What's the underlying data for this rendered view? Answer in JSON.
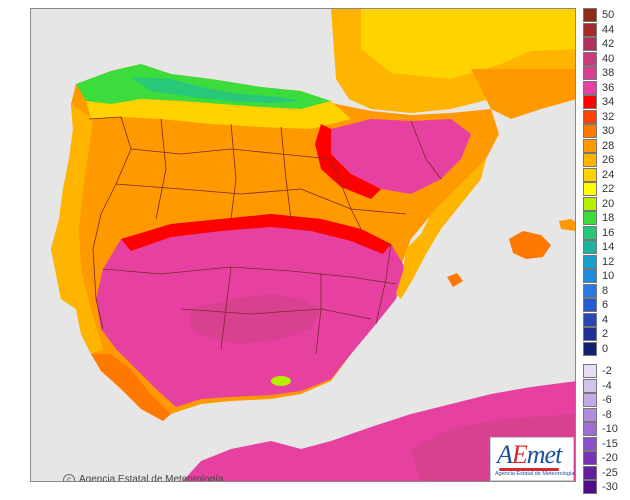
{
  "legend": {
    "items": [
      {
        "label": "50",
        "color": "#8c2a14"
      },
      {
        "label": "44",
        "color": "#a52a2a"
      },
      {
        "label": "42",
        "color": "#b03060"
      },
      {
        "label": "40",
        "color": "#c83c7c"
      },
      {
        "label": "38",
        "color": "#d84090"
      },
      {
        "label": "36",
        "color": "#e640a0"
      },
      {
        "label": "34",
        "color": "#ff0000"
      },
      {
        "label": "32",
        "color": "#ff4000"
      },
      {
        "label": "30",
        "color": "#ff7800"
      },
      {
        "label": "28",
        "color": "#ff9900"
      },
      {
        "label": "26",
        "color": "#ffb400"
      },
      {
        "label": "24",
        "color": "#ffd200"
      },
      {
        "label": "22",
        "color": "#ffff00"
      },
      {
        "label": "20",
        "color": "#b4f000"
      },
      {
        "label": "18",
        "color": "#3cdc3c"
      },
      {
        "label": "16",
        "color": "#28c878"
      },
      {
        "label": "14",
        "color": "#1eb4a0"
      },
      {
        "label": "12",
        "color": "#14a0c8"
      },
      {
        "label": "10",
        "color": "#1e8cdc"
      },
      {
        "label": "8",
        "color": "#2878e6"
      },
      {
        "label": "6",
        "color": "#285ad2"
      },
      {
        "label": "4",
        "color": "#2846b4"
      },
      {
        "label": "2",
        "color": "#1e3296"
      },
      {
        "label": "0",
        "color": "#14206e"
      },
      {
        "label": "-2",
        "color": "#e6dcf5"
      },
      {
        "label": "-4",
        "color": "#d2c3ee"
      },
      {
        "label": "-6",
        "color": "#c3aae6"
      },
      {
        "label": "-8",
        "color": "#b48cdc"
      },
      {
        "label": "-10",
        "color": "#a06ed2"
      },
      {
        "label": "-15",
        "color": "#8c50c8"
      },
      {
        "label": "-20",
        "color": "#7832b4"
      },
      {
        "label": "-25",
        "color": "#641ea0"
      },
      {
        "label": "-30",
        "color": "#500a8c"
      }
    ]
  },
  "credit": {
    "symbol": "c",
    "text": "Agencia Estatal de Meteorología"
  },
  "logo": {
    "brand_a": "A",
    "brand_e": "E",
    "brand_rest": "met",
    "subtitle": "Agencia Estatal de Meteorología"
  }
}
